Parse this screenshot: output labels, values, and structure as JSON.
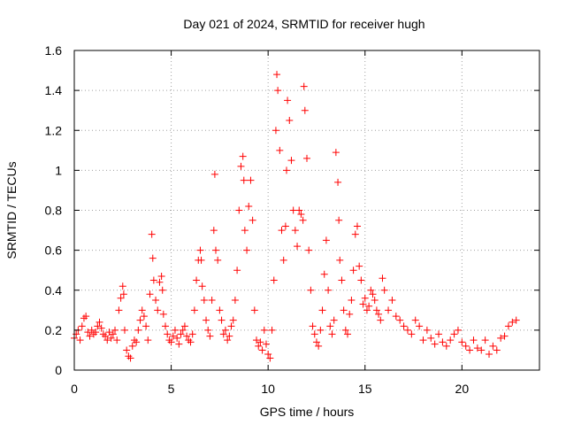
{
  "chart_data": {
    "type": "scatter",
    "title": "Day 021 of 2024, SRMTID for receiver hugh",
    "xlabel": "GPS time / hours",
    "ylabel": "SRMTID / TECUs",
    "xlim": [
      0,
      24
    ],
    "ylim": [
      0,
      1.6
    ],
    "x_ticks": [
      0,
      5,
      10,
      15,
      20
    ],
    "x_tick_labels": [
      "0",
      "5",
      "10",
      "15",
      "20"
    ],
    "y_ticks": [
      0,
      0.2,
      0.4,
      0.6,
      0.8,
      1.0,
      1.2,
      1.4,
      1.6
    ],
    "y_tick_labels": [
      "0",
      "0.2",
      "0.4",
      "0.6",
      "0.8",
      "1",
      "1.2",
      "1.4",
      "1.6"
    ],
    "grid": true,
    "marker": "plus",
    "color": "#ff0000",
    "series": [
      {
        "name": "SRMTID",
        "x": [
          0.0,
          0.1,
          0.2,
          0.3,
          0.4,
          0.5,
          0.6,
          0.7,
          0.8,
          0.9,
          1.0,
          1.1,
          1.2,
          1.3,
          1.4,
          1.5,
          1.6,
          1.7,
          1.8,
          1.9,
          2.0,
          2.1,
          2.2,
          2.3,
          2.4,
          2.5,
          2.55,
          2.6,
          2.7,
          2.8,
          2.9,
          3.0,
          3.1,
          3.2,
          3.3,
          3.4,
          3.5,
          3.6,
          3.7,
          3.8,
          3.9,
          4.0,
          4.05,
          4.1,
          4.2,
          4.3,
          4.4,
          4.5,
          4.55,
          4.6,
          4.7,
          4.8,
          4.9,
          5.0,
          5.1,
          5.2,
          5.3,
          5.4,
          5.5,
          5.6,
          5.7,
          5.8,
          5.9,
          6.0,
          6.1,
          6.2,
          6.3,
          6.4,
          6.5,
          6.55,
          6.6,
          6.7,
          6.8,
          6.9,
          7.0,
          7.1,
          7.2,
          7.25,
          7.3,
          7.4,
          7.5,
          7.6,
          7.7,
          7.8,
          7.9,
          8.0,
          8.1,
          8.2,
          8.3,
          8.4,
          8.5,
          8.6,
          8.7,
          8.75,
          8.8,
          8.9,
          9.0,
          9.1,
          9.2,
          9.3,
          9.4,
          9.5,
          9.6,
          9.7,
          9.8,
          9.9,
          10.0,
          10.1,
          10.2,
          10.3,
          10.4,
          10.45,
          10.5,
          10.6,
          10.7,
          10.8,
          10.9,
          10.95,
          11.0,
          11.1,
          11.2,
          11.3,
          11.4,
          11.5,
          11.6,
          11.7,
          11.8,
          11.85,
          11.9,
          12.0,
          12.1,
          12.2,
          12.3,
          12.4,
          12.5,
          12.6,
          12.7,
          12.8,
          12.9,
          13.0,
          13.1,
          13.2,
          13.3,
          13.4,
          13.5,
          13.6,
          13.65,
          13.7,
          13.8,
          13.9,
          14.0,
          14.1,
          14.2,
          14.3,
          14.4,
          14.5,
          14.6,
          14.7,
          14.8,
          14.9,
          15.0,
          15.1,
          15.2,
          15.3,
          15.4,
          15.5,
          15.6,
          15.7,
          15.8,
          15.9,
          16.0,
          16.2,
          16.4,
          16.6,
          16.8,
          17.0,
          17.2,
          17.4,
          17.6,
          17.8,
          18.0,
          18.2,
          18.4,
          18.6,
          18.8,
          19.0,
          19.2,
          19.4,
          19.6,
          19.8,
          20.0,
          20.2,
          20.4,
          20.6,
          20.8,
          21.0,
          21.2,
          21.4,
          21.6,
          21.8,
          22.0,
          22.2,
          22.4,
          22.6,
          22.8
        ],
        "y": [
          0.16,
          0.18,
          0.2,
          0.15,
          0.22,
          0.26,
          0.27,
          0.19,
          0.17,
          0.2,
          0.18,
          0.19,
          0.22,
          0.24,
          0.21,
          0.18,
          0.17,
          0.15,
          0.19,
          0.16,
          0.18,
          0.2,
          0.15,
          0.3,
          0.36,
          0.42,
          0.38,
          0.2,
          0.1,
          0.07,
          0.06,
          0.12,
          0.15,
          0.14,
          0.2,
          0.25,
          0.3,
          0.27,
          0.22,
          0.15,
          0.38,
          0.68,
          0.56,
          0.45,
          0.35,
          0.3,
          0.44,
          0.47,
          0.4,
          0.28,
          0.22,
          0.18,
          0.15,
          0.14,
          0.17,
          0.2,
          0.16,
          0.13,
          0.18,
          0.2,
          0.22,
          0.17,
          0.15,
          0.14,
          0.18,
          0.3,
          0.45,
          0.55,
          0.6,
          0.55,
          0.42,
          0.35,
          0.25,
          0.2,
          0.17,
          0.35,
          0.7,
          0.98,
          0.6,
          0.55,
          0.3,
          0.25,
          0.18,
          0.2,
          0.15,
          0.17,
          0.22,
          0.25,
          0.35,
          0.5,
          0.8,
          1.02,
          1.07,
          0.95,
          0.7,
          0.6,
          0.82,
          0.95,
          0.75,
          0.3,
          0.15,
          0.12,
          0.14,
          0.1,
          0.2,
          0.13,
          0.08,
          0.06,
          0.2,
          0.45,
          1.2,
          1.48,
          1.4,
          1.1,
          0.7,
          0.55,
          0.72,
          1.0,
          1.35,
          1.25,
          1.05,
          0.8,
          0.7,
          0.62,
          0.8,
          0.78,
          0.75,
          1.42,
          1.3,
          1.06,
          0.6,
          0.4,
          0.22,
          0.18,
          0.14,
          0.12,
          0.2,
          0.3,
          0.48,
          0.65,
          0.4,
          0.22,
          0.18,
          0.25,
          1.09,
          0.94,
          0.75,
          0.55,
          0.45,
          0.3,
          0.2,
          0.18,
          0.28,
          0.35,
          0.5,
          0.68,
          0.72,
          0.52,
          0.45,
          0.33,
          0.36,
          0.3,
          0.32,
          0.4,
          0.38,
          0.35,
          0.3,
          0.28,
          0.25,
          0.46,
          0.4,
          0.3,
          0.35,
          0.27,
          0.25,
          0.22,
          0.2,
          0.18,
          0.25,
          0.22,
          0.15,
          0.2,
          0.16,
          0.13,
          0.18,
          0.14,
          0.12,
          0.15,
          0.18,
          0.2,
          0.14,
          0.12,
          0.1,
          0.15,
          0.11,
          0.1,
          0.15,
          0.08,
          0.12,
          0.1,
          0.16,
          0.17,
          0.22,
          0.24,
          0.25
        ]
      }
    ]
  }
}
